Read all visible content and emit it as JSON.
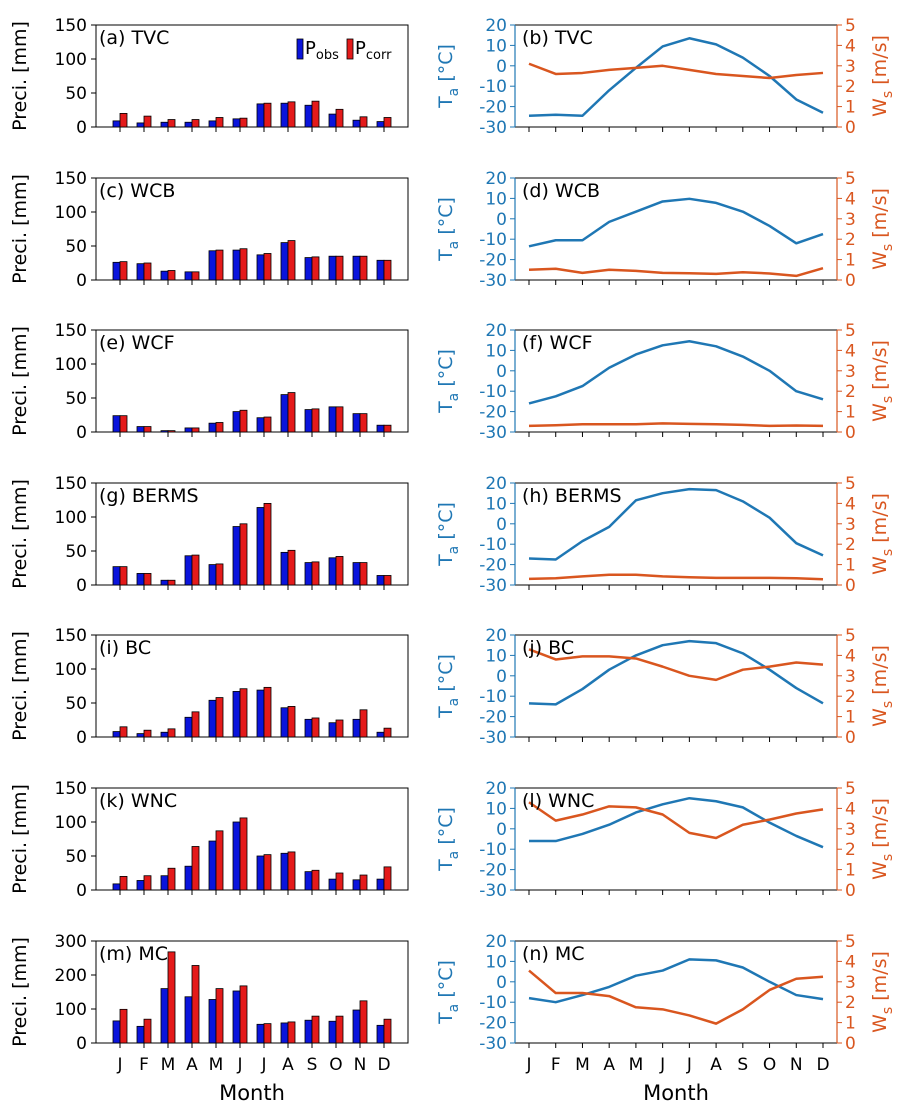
{
  "figure": {
    "months": [
      "J",
      "F",
      "M",
      "A",
      "M",
      "J",
      "J",
      "A",
      "S",
      "O",
      "N",
      "D"
    ],
    "xlabel": "Month",
    "left_ylabel": "Preci. [mm]",
    "ta_ylabel_main": "T",
    "ta_ylabel_sub": "a",
    "ta_ylabel_unit": " [°C]",
    "ws_ylabel_main": "W",
    "ws_ylabel_sub": "s",
    "ws_ylabel_unit": " [m/s]",
    "legend": [
      {
        "main": "P",
        "sub": "obs",
        "color": "#0a14dc"
      },
      {
        "main": "P",
        "sub": "corr",
        "color": "#e41a1a"
      }
    ],
    "colors": {
      "obs": "#0a14dc",
      "corr": "#e41a1a",
      "ta": "#1f77b4",
      "ws": "#d9561f"
    }
  },
  "chart_data": [
    {
      "type": "bar",
      "title": "(a) TVC",
      "categories": [
        "J",
        "F",
        "M",
        "A",
        "M",
        "J",
        "J",
        "A",
        "S",
        "O",
        "N",
        "D"
      ],
      "ylabel": "Preci. [mm]",
      "ylim": [
        0,
        150
      ],
      "yticks": [
        0,
        50,
        100,
        150
      ],
      "series": [
        {
          "name": "Pobs",
          "values": [
            9,
            6,
            7,
            7,
            9,
            12,
            34,
            35,
            32,
            19,
            10,
            8
          ]
        },
        {
          "name": "Pcorr",
          "values": [
            20,
            16,
            11,
            11,
            14,
            13,
            35,
            37,
            38,
            26,
            15,
            14
          ]
        }
      ]
    },
    {
      "type": "line",
      "title": "(b) TVC",
      "x": [
        "J",
        "F",
        "M",
        "A",
        "M",
        "J",
        "J",
        "A",
        "S",
        "O",
        "N",
        "D"
      ],
      "ylim_left": [
        -30,
        20
      ],
      "yticks_left": [
        -30,
        -20,
        -10,
        0,
        10,
        20
      ],
      "ylim_right": [
        0,
        5
      ],
      "yticks_right": [
        0,
        1,
        2,
        3,
        4,
        5
      ],
      "series": [
        {
          "name": "Ta",
          "axis": "left",
          "values": [
            -24.5,
            -24,
            -24.5,
            -12,
            -1,
            9.5,
            13.5,
            10.5,
            4,
            -5,
            -16.5,
            -23
          ]
        },
        {
          "name": "Ws",
          "axis": "right",
          "values": [
            3.1,
            2.6,
            2.65,
            2.8,
            2.9,
            3.0,
            2.8,
            2.6,
            2.5,
            2.4,
            2.55,
            2.65
          ]
        }
      ]
    },
    {
      "type": "bar",
      "title": "(c) WCB",
      "categories": [
        "J",
        "F",
        "M",
        "A",
        "M",
        "J",
        "J",
        "A",
        "S",
        "O",
        "N",
        "D"
      ],
      "ylabel": "Preci. [mm]",
      "ylim": [
        0,
        150
      ],
      "yticks": [
        0,
        50,
        100,
        150
      ],
      "series": [
        {
          "name": "Pobs",
          "values": [
            26,
            24,
            13,
            12,
            43,
            44,
            37,
            55,
            33,
            35,
            35,
            29
          ]
        },
        {
          "name": "Pcorr",
          "values": [
            27,
            25,
            14,
            12,
            44,
            46,
            39,
            58,
            34,
            35,
            35,
            29
          ]
        }
      ]
    },
    {
      "type": "line",
      "title": "(d) WCB",
      "x": [
        "J",
        "F",
        "M",
        "A",
        "M",
        "J",
        "J",
        "A",
        "S",
        "O",
        "N",
        "D"
      ],
      "ylim_left": [
        -30,
        20
      ],
      "yticks_left": [
        -30,
        -20,
        -10,
        0,
        10,
        20
      ],
      "ylim_right": [
        0,
        5
      ],
      "yticks_right": [
        0,
        1,
        2,
        3,
        4,
        5
      ],
      "series": [
        {
          "name": "Ta",
          "axis": "left",
          "values": [
            -13.5,
            -10.5,
            -10.5,
            -1.5,
            3.5,
            8.5,
            9.8,
            7.8,
            3.5,
            -3.5,
            -12,
            -7.5
          ]
        },
        {
          "name": "Ws",
          "axis": "right",
          "values": [
            0.5,
            0.55,
            0.35,
            0.5,
            0.45,
            0.35,
            0.33,
            0.3,
            0.38,
            0.32,
            0.2,
            0.58
          ]
        }
      ]
    },
    {
      "type": "bar",
      "title": "(e) WCF",
      "categories": [
        "J",
        "F",
        "M",
        "A",
        "M",
        "J",
        "J",
        "A",
        "S",
        "O",
        "N",
        "D"
      ],
      "ylabel": "Preci. [mm]",
      "ylim": [
        0,
        150
      ],
      "yticks": [
        0,
        50,
        100,
        150
      ],
      "series": [
        {
          "name": "Pobs",
          "values": [
            24,
            8,
            2,
            6,
            13,
            30,
            21,
            55,
            33,
            37,
            27,
            10
          ]
        },
        {
          "name": "Pcorr",
          "values": [
            24,
            8,
            2,
            6,
            14,
            32,
            22,
            58,
            34,
            37,
            27,
            10
          ]
        }
      ]
    },
    {
      "type": "line",
      "title": "(f) WCF",
      "x": [
        "J",
        "F",
        "M",
        "A",
        "M",
        "J",
        "J",
        "A",
        "S",
        "O",
        "N",
        "D"
      ],
      "ylim_left": [
        -30,
        20
      ],
      "yticks_left": [
        -30,
        -20,
        -10,
        0,
        10,
        20
      ],
      "ylim_right": [
        0,
        5
      ],
      "yticks_right": [
        0,
        1,
        2,
        3,
        4,
        5
      ],
      "series": [
        {
          "name": "Ta",
          "axis": "left",
          "values": [
            -16,
            -12.5,
            -7.5,
            1.5,
            8,
            12.5,
            14.5,
            12,
            7,
            0,
            -10,
            -14
          ]
        },
        {
          "name": "Ws",
          "axis": "right",
          "values": [
            0.3,
            0.33,
            0.38,
            0.38,
            0.38,
            0.42,
            0.4,
            0.38,
            0.35,
            0.3,
            0.32,
            0.3
          ]
        }
      ]
    },
    {
      "type": "bar",
      "title": "(g) BERMS",
      "categories": [
        "J",
        "F",
        "M",
        "A",
        "M",
        "J",
        "J",
        "A",
        "S",
        "O",
        "N",
        "D"
      ],
      "ylabel": "Preci. [mm]",
      "ylim": [
        0,
        150
      ],
      "yticks": [
        0,
        50,
        100,
        150
      ],
      "series": [
        {
          "name": "Pobs",
          "values": [
            27,
            17,
            7,
            43,
            30,
            86,
            114,
            48,
            33,
            40,
            33,
            14
          ]
        },
        {
          "name": "Pcorr",
          "values": [
            27,
            17,
            7,
            44,
            31,
            90,
            120,
            51,
            34,
            42,
            33,
            14
          ]
        }
      ]
    },
    {
      "type": "line",
      "title": "(h) BERMS",
      "x": [
        "J",
        "F",
        "M",
        "A",
        "M",
        "J",
        "J",
        "A",
        "S",
        "O",
        "N",
        "D"
      ],
      "ylim_left": [
        -30,
        20
      ],
      "yticks_left": [
        -30,
        -20,
        -10,
        0,
        10,
        20
      ],
      "ylim_right": [
        0,
        5
      ],
      "yticks_right": [
        0,
        1,
        2,
        3,
        4,
        5
      ],
      "series": [
        {
          "name": "Ta",
          "axis": "left",
          "values": [
            -17,
            -17.5,
            -8.5,
            -1.5,
            11.5,
            15,
            17,
            16.5,
            11,
            3,
            -9.5,
            -15.5
          ]
        },
        {
          "name": "Ws",
          "axis": "right",
          "values": [
            0.3,
            0.33,
            0.42,
            0.5,
            0.5,
            0.42,
            0.38,
            0.35,
            0.35,
            0.35,
            0.33,
            0.28
          ]
        }
      ]
    },
    {
      "type": "bar",
      "title": "(i) BC",
      "categories": [
        "J",
        "F",
        "M",
        "A",
        "M",
        "J",
        "J",
        "A",
        "S",
        "O",
        "N",
        "D"
      ],
      "ylabel": "Preci. [mm]",
      "ylim": [
        0,
        150
      ],
      "yticks": [
        0,
        50,
        100,
        150
      ],
      "series": [
        {
          "name": "Pobs",
          "values": [
            8,
            5,
            7,
            29,
            54,
            67,
            69,
            43,
            26,
            21,
            26,
            7
          ]
        },
        {
          "name": "Pcorr",
          "values": [
            15,
            10,
            12,
            37,
            58,
            71,
            73,
            45,
            28,
            25,
            40,
            13
          ]
        }
      ]
    },
    {
      "type": "line",
      "title": "(j) BC",
      "x": [
        "J",
        "F",
        "M",
        "A",
        "M",
        "J",
        "J",
        "A",
        "S",
        "O",
        "N",
        "D"
      ],
      "ylim_left": [
        -30,
        20
      ],
      "yticks_left": [
        -30,
        -20,
        -10,
        0,
        10,
        20
      ],
      "ylim_right": [
        0,
        5
      ],
      "yticks_right": [
        0,
        1,
        2,
        3,
        4,
        5
      ],
      "series": [
        {
          "name": "Ta",
          "axis": "left",
          "values": [
            -13.5,
            -14,
            -6.5,
            3,
            10,
            15,
            17,
            16,
            11,
            3,
            -6,
            -13.5
          ]
        },
        {
          "name": "Ws",
          "axis": "right",
          "values": [
            4.3,
            3.8,
            3.95,
            3.95,
            3.85,
            3.45,
            3.0,
            2.8,
            3.3,
            3.45,
            3.65,
            3.55
          ]
        }
      ]
    },
    {
      "type": "bar",
      "title": "(k) WNC",
      "categories": [
        "J",
        "F",
        "M",
        "A",
        "M",
        "J",
        "J",
        "A",
        "S",
        "O",
        "N",
        "D"
      ],
      "ylabel": "Preci. [mm]",
      "ylim": [
        0,
        150
      ],
      "yticks": [
        0,
        50,
        100,
        150
      ],
      "series": [
        {
          "name": "Pobs",
          "values": [
            9,
            14,
            21,
            35,
            72,
            100,
            50,
            54,
            27,
            16,
            15,
            16
          ]
        },
        {
          "name": "Pcorr",
          "values": [
            20,
            21,
            32,
            64,
            87,
            106,
            52,
            56,
            29,
            25,
            22,
            34
          ]
        }
      ]
    },
    {
      "type": "line",
      "title": "(l) WNC",
      "x": [
        "J",
        "F",
        "M",
        "A",
        "M",
        "J",
        "J",
        "A",
        "S",
        "O",
        "N",
        "D"
      ],
      "ylim_left": [
        -30,
        20
      ],
      "yticks_left": [
        -30,
        -20,
        -10,
        0,
        10,
        20
      ],
      "ylim_right": [
        0,
        5
      ],
      "yticks_right": [
        0,
        1,
        2,
        3,
        4,
        5
      ],
      "series": [
        {
          "name": "Ta",
          "axis": "left",
          "values": [
            -6,
            -6,
            -2.5,
            2,
            8,
            12,
            15,
            13.5,
            10.5,
            3,
            -3.5,
            -9
          ]
        },
        {
          "name": "Ws",
          "axis": "right",
          "values": [
            4.3,
            3.4,
            3.7,
            4.1,
            4.05,
            3.7,
            2.8,
            2.55,
            3.2,
            3.45,
            3.75,
            3.95
          ]
        }
      ]
    },
    {
      "type": "bar",
      "title": "(m) MC",
      "categories": [
        "J",
        "F",
        "M",
        "A",
        "M",
        "J",
        "J",
        "A",
        "S",
        "O",
        "N",
        "D"
      ],
      "ylabel": "Preci. [mm]",
      "ylim": [
        0,
        300
      ],
      "yticks": [
        0,
        100,
        200,
        300
      ],
      "series": [
        {
          "name": "Pobs",
          "values": [
            65,
            49,
            160,
            136,
            128,
            153,
            55,
            59,
            67,
            64,
            97,
            52
          ]
        },
        {
          "name": "Pcorr",
          "values": [
            99,
            70,
            268,
            228,
            160,
            168,
            57,
            62,
            79,
            79,
            124,
            70
          ]
        }
      ]
    },
    {
      "type": "line",
      "title": "(n) MC",
      "x": [
        "J",
        "F",
        "M",
        "A",
        "M",
        "J",
        "J",
        "A",
        "S",
        "O",
        "N",
        "D"
      ],
      "ylim_left": [
        -30,
        20
      ],
      "yticks_left": [
        -30,
        -20,
        -10,
        0,
        10,
        20
      ],
      "ylim_right": [
        0,
        5
      ],
      "yticks_right": [
        0,
        1,
        2,
        3,
        4,
        5
      ],
      "series": [
        {
          "name": "Ta",
          "axis": "left",
          "values": [
            -8,
            -10,
            -6.5,
            -2.5,
            3,
            5.5,
            11,
            10.5,
            7,
            0,
            -6.5,
            -8.5
          ]
        },
        {
          "name": "Ws",
          "axis": "right",
          "values": [
            3.55,
            2.45,
            2.45,
            2.3,
            1.75,
            1.65,
            1.35,
            0.95,
            1.65,
            2.6,
            3.15,
            3.25
          ]
        }
      ]
    }
  ]
}
